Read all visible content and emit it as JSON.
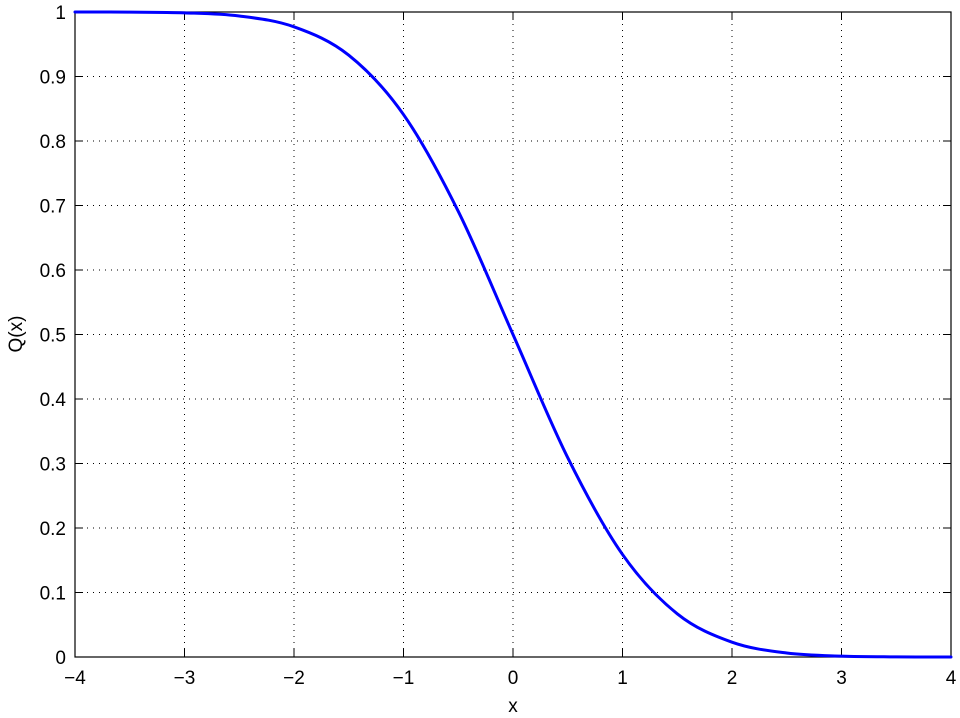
{
  "chart_data": {
    "type": "line",
    "title": "",
    "xlabel": "x",
    "ylabel": "Q(x)",
    "xlim": [
      -4,
      4
    ],
    "ylim": [
      0,
      1
    ],
    "grid": true,
    "x_ticks": [
      -4,
      -3,
      -2,
      -1,
      0,
      1,
      2,
      3,
      4
    ],
    "y_ticks": [
      0,
      0.1,
      0.2,
      0.3,
      0.4,
      0.5,
      0.6,
      0.7,
      0.8,
      0.9,
      1
    ],
    "x_tick_labels": [
      "−4",
      "−3",
      "−2",
      "−1",
      "0",
      "1",
      "2",
      "3",
      "4"
    ],
    "y_tick_labels": [
      "0",
      "0.1",
      "0.2",
      "0.3",
      "0.4",
      "0.5",
      "0.6",
      "0.7",
      "0.8",
      "0.9",
      "1"
    ],
    "series": [
      {
        "color": "#0000ff",
        "x": [
          -4,
          -3.5,
          -3,
          -2.5,
          -2,
          -1.5,
          -1,
          -0.5,
          0,
          0.5,
          1,
          1.5,
          2,
          2.5,
          3,
          3.5,
          4
        ],
        "y": [
          1.0,
          0.9998,
          0.9987,
          0.9938,
          0.977,
          0.933,
          0.841,
          0.691,
          0.5,
          0.309,
          0.159,
          0.067,
          0.023,
          0.0062,
          0.0013,
          0.0002,
          0.0
        ]
      }
    ]
  }
}
